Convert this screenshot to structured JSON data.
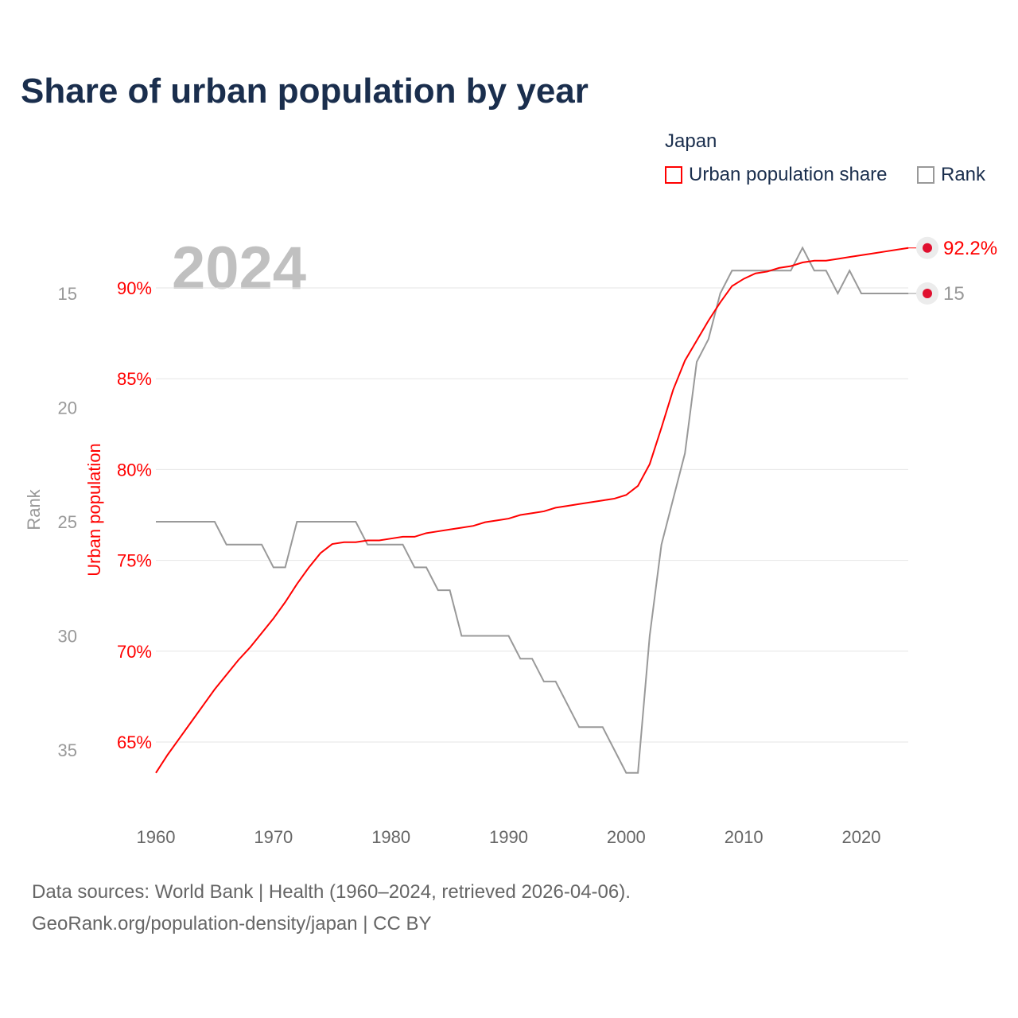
{
  "title": "Share of urban population by year",
  "legend": {
    "title": "Japan",
    "items": [
      {
        "label": "Urban population share",
        "color": "#ff0000"
      },
      {
        "label": "Rank",
        "color": "#999999"
      }
    ]
  },
  "sources": [
    "Data sources: World Bank | Health (1960–2024, retrieved 2026-04-06).",
    "GeoRank.org/population-density/japan | CC BY"
  ],
  "chart_data": {
    "type": "line",
    "title": "Share of urban population by year",
    "year_label": "2024",
    "x": [
      1960,
      1961,
      1962,
      1963,
      1964,
      1965,
      1966,
      1967,
      1968,
      1969,
      1970,
      1971,
      1972,
      1973,
      1974,
      1975,
      1976,
      1977,
      1978,
      1979,
      1980,
      1981,
      1982,
      1983,
      1984,
      1985,
      1986,
      1987,
      1988,
      1989,
      1990,
      1991,
      1992,
      1993,
      1994,
      1995,
      1996,
      1997,
      1998,
      1999,
      2000,
      2001,
      2002,
      2003,
      2004,
      2005,
      2006,
      2007,
      2008,
      2009,
      2010,
      2011,
      2012,
      2013,
      2014,
      2015,
      2016,
      2017,
      2018,
      2019,
      2020,
      2021,
      2022,
      2023,
      2024
    ],
    "xticks": [
      1960,
      1970,
      1980,
      1990,
      2000,
      2010,
      2020
    ],
    "series": [
      {
        "name": "Urban population share",
        "axis": "left",
        "color": "#ff0000",
        "values": [
          63.3,
          64.3,
          65.2,
          66.1,
          67.0,
          67.9,
          68.7,
          69.5,
          70.2,
          71.0,
          71.8,
          72.7,
          73.7,
          74.6,
          75.4,
          75.9,
          76.0,
          76.0,
          76.1,
          76.1,
          76.2,
          76.3,
          76.3,
          76.5,
          76.6,
          76.7,
          76.8,
          76.9,
          77.1,
          77.2,
          77.3,
          77.5,
          77.6,
          77.7,
          77.9,
          78.0,
          78.1,
          78.2,
          78.3,
          78.4,
          78.6,
          79.1,
          80.3,
          82.3,
          84.4,
          86.0,
          87.1,
          88.2,
          89.2,
          90.1,
          90.5,
          90.8,
          90.9,
          91.1,
          91.2,
          91.4,
          91.5,
          91.5,
          91.6,
          91.7,
          91.8,
          91.9,
          92.0,
          92.1,
          92.2
        ],
        "end_label": "92.2%"
      },
      {
        "name": "Rank",
        "axis": "right",
        "color": "#999999",
        "values": [
          25,
          25,
          25,
          25,
          25,
          25,
          26,
          26,
          26,
          26,
          27,
          27,
          25,
          25,
          25,
          25,
          25,
          25,
          26,
          26,
          26,
          26,
          27,
          27,
          28,
          28,
          30,
          30,
          30,
          30,
          30,
          31,
          31,
          32,
          32,
          33,
          34,
          34,
          34,
          35,
          36,
          36,
          30,
          26,
          24,
          22,
          18,
          17,
          15,
          14,
          14,
          14,
          14,
          14,
          14,
          13,
          14,
          14,
          15,
          14,
          15,
          15,
          15,
          15,
          15
        ],
        "end_label": "15"
      }
    ],
    "y_left": {
      "label": "Urban population",
      "range": [
        62,
        93
      ],
      "ticks": [
        65,
        70,
        75,
        80,
        85,
        90
      ],
      "tick_labels": [
        "65%",
        "70%",
        "75%",
        "80%",
        "85%",
        "90%"
      ]
    },
    "y_rank": {
      "label": "Rank",
      "inverted": true,
      "ticks": [
        15,
        20,
        25,
        30,
        35
      ]
    },
    "grid": true,
    "legend_position": "top-right"
  }
}
